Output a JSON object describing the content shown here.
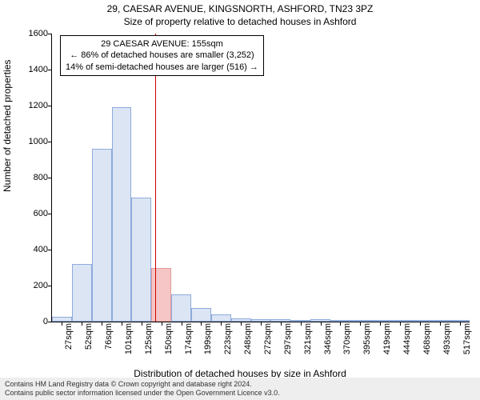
{
  "title_main": "29, CAESAR AVENUE, KINGSNORTH, ASHFORD, TN23 3PZ",
  "title_sub": "Size of property relative to detached houses in Ashford",
  "yaxis_label": "Number of detached properties",
  "xaxis_label": "Distribution of detached houses by size in Ashford",
  "infobox": {
    "line1": "29 CAESAR AVENUE: 155sqm",
    "line2": "← 86% of detached houses are smaller (3,252)",
    "line3": "14% of semi-detached houses are larger (516) →"
  },
  "footer": {
    "line1": "Contains HM Land Registry data © Crown copyright and database right 2024.",
    "line2": "Contains public sector information licensed under the Open Government Licence v3.0."
  },
  "chart": {
    "type": "histogram",
    "ylim": [
      0,
      1600
    ],
    "yticks": [
      0,
      200,
      400,
      600,
      800,
      1000,
      1200,
      1400,
      1600
    ],
    "x_labels": [
      "27sqm",
      "52sqm",
      "76sqm",
      "101sqm",
      "125sqm",
      "150sqm",
      "174sqm",
      "199sqm",
      "223sqm",
      "248sqm",
      "272sqm",
      "297sqm",
      "321sqm",
      "346sqm",
      "370sqm",
      "395sqm",
      "419sqm",
      "444sqm",
      "468sqm",
      "493sqm",
      "517sqm"
    ],
    "values": [
      25,
      320,
      960,
      1190,
      690,
      300,
      150,
      75,
      40,
      20,
      15,
      12,
      8,
      12,
      6,
      4,
      3,
      2,
      2,
      1,
      1
    ],
    "highlight_index": 5,
    "bar_color": "#dbe5f4",
    "bar_border": "#8faadc",
    "highlight_color": "#f6c6c6",
    "highlight_border": "#e49a9a",
    "marker_color": "#cc0000",
    "axis_color": "#000000",
    "label_fontsize": 11,
    "title_fontsize": 12,
    "bar_width_ratio": 1.0,
    "background_color": "#ffffff"
  }
}
